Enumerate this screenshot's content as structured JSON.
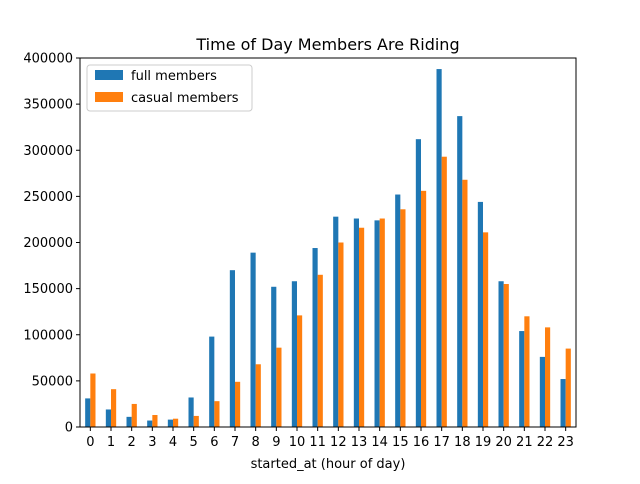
{
  "chart_data": {
    "type": "bar",
    "title": "Time of Day Members Are Riding",
    "xlabel": "started_at (hour of day)",
    "ylabel": "",
    "ylim": [
      0,
      400000
    ],
    "yticks": [
      0,
      50000,
      100000,
      150000,
      200000,
      250000,
      300000,
      350000,
      400000
    ],
    "grid": false,
    "legend_position": "top-left",
    "categories": [
      "0",
      "1",
      "2",
      "3",
      "4",
      "5",
      "6",
      "7",
      "8",
      "9",
      "10",
      "11",
      "12",
      "13",
      "14",
      "15",
      "16",
      "17",
      "18",
      "19",
      "20",
      "21",
      "22",
      "23"
    ],
    "series": [
      {
        "name": "full members",
        "color": "#1f77b4",
        "values": [
          31000,
          19000,
          11000,
          7000,
          8000,
          32000,
          98000,
          170000,
          189000,
          152000,
          158000,
          194000,
          228000,
          226000,
          224000,
          252000,
          312000,
          388000,
          337000,
          244000,
          158000,
          104000,
          76000,
          52000
        ]
      },
      {
        "name": "casual members",
        "color": "#ff7f0e",
        "values": [
          58000,
          41000,
          25000,
          13000,
          9000,
          12000,
          28000,
          49000,
          68000,
          86000,
          121000,
          165000,
          200000,
          216000,
          226000,
          236000,
          256000,
          293000,
          268000,
          211000,
          155000,
          120000,
          108000,
          85000
        ]
      }
    ]
  }
}
